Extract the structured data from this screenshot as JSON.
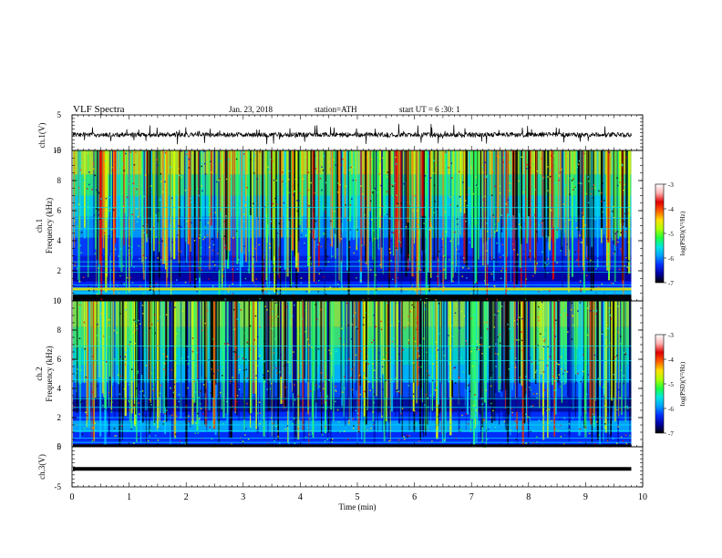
{
  "header": {
    "title": "VLF  Spectra",
    "date": "Jan. 23, 2018",
    "station": "station=ATH",
    "start_ut": "start  UT  =    6  :30: 1"
  },
  "chart_data": [
    {
      "type": "line",
      "name": "ch1-waveform",
      "ylabel": "ch.1(V)",
      "ylim": [
        -5,
        5
      ],
      "yticks": [
        "5",
        "-5"
      ],
      "description_level": "noisy trace around -0.6 V with spikes to about +2.5 / -2.5 V"
    },
    {
      "type": "heatmap",
      "name": "ch1-spectrogram",
      "ylabel_lines": [
        "ch.1",
        "Frequency (kHz)"
      ],
      "ylim": [
        0,
        10
      ],
      "yticks": [
        "0",
        "2",
        "4",
        "6",
        "8",
        "10"
      ],
      "colorbar": {
        "label": "log(PSD)(V²/Hz)",
        "range": [
          -7,
          -3
        ],
        "ticks": [
          "-3",
          "-4",
          "-5",
          "-6",
          "-7"
        ]
      }
    },
    {
      "type": "heatmap",
      "name": "ch2-spectrogram",
      "ylabel_lines": [
        "ch.2",
        "Frequency (kHz)"
      ],
      "ylim": [
        0,
        10
      ],
      "yticks": [
        "0",
        "2",
        "4",
        "6",
        "8",
        "10"
      ],
      "colorbar": {
        "label": "log(PSD)(V²/Hz)",
        "range": [
          -7,
          -3
        ],
        "ticks": [
          "-3",
          "-4",
          "-5",
          "-6",
          "-7"
        ]
      }
    },
    {
      "type": "line",
      "name": "ch3-waveform",
      "ylabel": "ch.3(V)",
      "ylim": [
        -5,
        5
      ],
      "yticks": [
        "5",
        "-5"
      ],
      "values_level": -0.5
    }
  ],
  "x_axis": {
    "label": "Time  (min)",
    "range": [
      0,
      10
    ],
    "data_end": 9.8,
    "ticks": [
      "0",
      "1",
      "2",
      "3",
      "4",
      "5",
      "6",
      "7",
      "8",
      "9",
      "10"
    ]
  },
  "colors": {
    "colormap": [
      "#000000",
      "#0000b0",
      "#0030ff",
      "#00b0ff",
      "#00ffe0",
      "#20ff40",
      "#d0ff00",
      "#ffd000",
      "#ff5000",
      "#e00000",
      "#ffffff"
    ]
  }
}
